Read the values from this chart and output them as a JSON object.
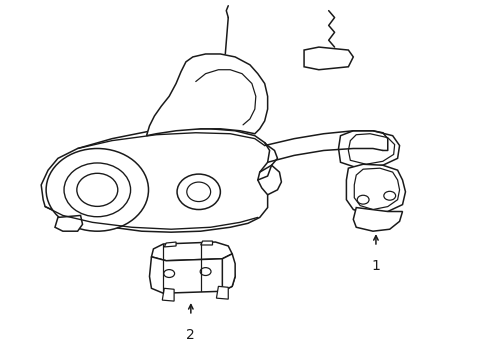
{
  "bg_color": "#ffffff",
  "line_color": "#1a1a1a",
  "line_width": 1.1,
  "fig_width": 4.89,
  "fig_height": 3.6,
  "dpi": 100,
  "label1_text": "1",
  "label2_text": "2"
}
